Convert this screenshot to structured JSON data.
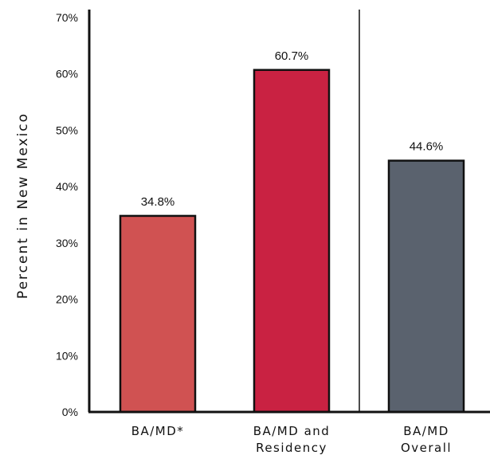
{
  "chart_data": {
    "type": "bar",
    "ylabel": "Percent in New Mexico",
    "ylim": [
      0,
      70
    ],
    "yticks": [
      "0%",
      "10%",
      "20%",
      "30%",
      "40%",
      "50%",
      "60%",
      "70%"
    ],
    "grid": false,
    "legend": "none",
    "categories": [
      [
        "BA/MD*"
      ],
      [
        "BA/MD and",
        "Residency"
      ],
      [
        "BA/MD",
        "Overall"
      ]
    ],
    "values": [
      34.8,
      60.7,
      44.6
    ],
    "value_labels": [
      "34.8%",
      "60.7%",
      "44.6%"
    ],
    "colors": [
      "#d05252",
      "#c92242",
      "#5a626e"
    ],
    "divider_after_category": 1
  }
}
